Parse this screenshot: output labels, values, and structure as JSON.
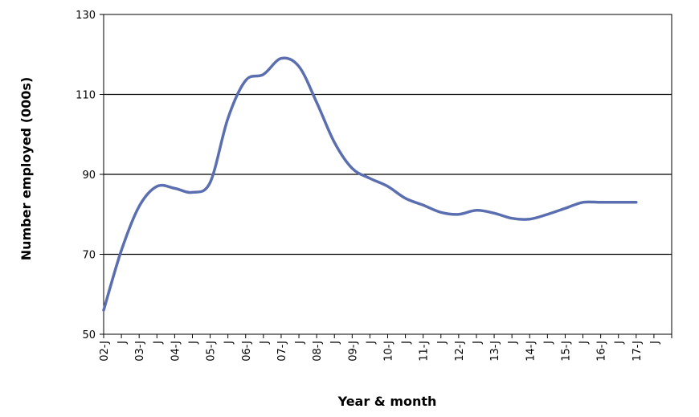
{
  "chart_data": {
    "type": "line",
    "title": "",
    "xlabel": "Year & month",
    "ylabel": "Number employed (000s)",
    "ylim": [
      50,
      130
    ],
    "yticks": [
      "50",
      "70",
      "90",
      "110",
      "130"
    ],
    "xtick_labels": [
      "02-J",
      "J",
      "03-J",
      "J",
      "04-J",
      "J",
      "05-J",
      "J",
      "06-J",
      "J",
      "07-J",
      "J",
      "08-J",
      "J",
      "09-J",
      "J",
      "10-J",
      "J",
      "11-J",
      "J",
      "12-J",
      "J",
      "13-J",
      "J",
      "14-J",
      "J",
      "15-J",
      "J",
      "16-J",
      "J",
      "17-J",
      "J"
    ],
    "grid": "horizontal",
    "legend": "none",
    "line_color": "#5b6fb0",
    "series": [
      {
        "x": [
          0,
          1,
          2,
          3,
          4,
          5,
          6,
          7,
          8,
          9,
          10,
          11,
          12,
          13,
          14,
          15,
          16,
          17,
          18,
          19,
          20,
          21,
          22,
          23,
          24,
          25,
          26,
          27,
          28,
          29,
          30
        ],
        "values": [
          56,
          71,
          82,
          87,
          86.5,
          85.5,
          88,
          104,
          113.5,
          115,
          119,
          117,
          108,
          98,
          91.5,
          89,
          87,
          84,
          82.3,
          80.5,
          80,
          81,
          80.3,
          79,
          78.8,
          80,
          81.5,
          83,
          83,
          83,
          83
        ]
      }
    ]
  }
}
